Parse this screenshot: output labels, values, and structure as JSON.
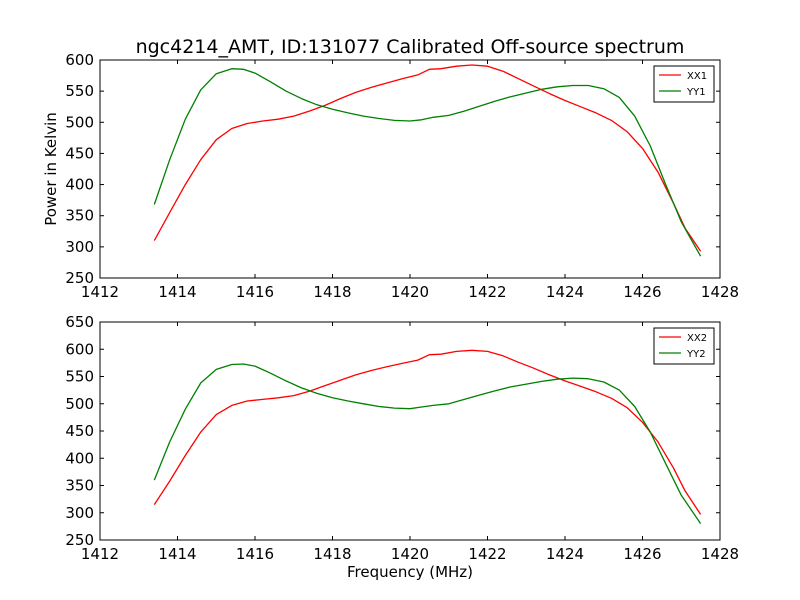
{
  "figure": {
    "title": "ngc4214_AMT, ID:131077 Calibrated Off-source spectrum"
  },
  "chart_data": [
    {
      "type": "line",
      "title": "ngc4214_AMT, ID:131077 Calibrated Off-source spectrum",
      "xlabel": "",
      "ylabel": "Power in Kelvin",
      "xlim": [
        1412,
        1428
      ],
      "ylim": [
        250,
        600
      ],
      "xticks": [
        1412,
        1414,
        1416,
        1418,
        1420,
        1422,
        1424,
        1426,
        1428
      ],
      "yticks": [
        250,
        300,
        350,
        400,
        450,
        500,
        550,
        600
      ],
      "grid": false,
      "legend_position": "top-right",
      "series": [
        {
          "name": "XX1",
          "color": "#ff0000",
          "x": [
            1413.4,
            1413.8,
            1414.2,
            1414.6,
            1415.0,
            1415.4,
            1415.8,
            1416.2,
            1416.6,
            1417.0,
            1417.4,
            1417.8,
            1418.2,
            1418.6,
            1419.0,
            1419.4,
            1419.8,
            1420.2,
            1420.5,
            1420.8,
            1421.2,
            1421.6,
            1422.0,
            1422.4,
            1422.8,
            1423.2,
            1423.6,
            1424.0,
            1424.4,
            1424.8,
            1425.2,
            1425.6,
            1426.0,
            1426.4,
            1426.8,
            1427.1,
            1427.5
          ],
          "y": [
            310,
            355,
            400,
            440,
            472,
            490,
            498,
            502,
            505,
            510,
            518,
            527,
            538,
            548,
            556,
            563,
            570,
            576,
            585,
            586,
            590,
            592,
            590,
            582,
            570,
            558,
            546,
            535,
            525,
            515,
            503,
            485,
            458,
            420,
            370,
            330,
            293
          ]
        },
        {
          "name": "YY1",
          "color": "#008000",
          "x": [
            1413.4,
            1413.8,
            1414.2,
            1414.6,
            1415.0,
            1415.4,
            1415.7,
            1416.0,
            1416.4,
            1416.8,
            1417.2,
            1417.6,
            1418.0,
            1418.4,
            1418.8,
            1419.2,
            1419.6,
            1420.0,
            1420.3,
            1420.6,
            1421.0,
            1421.4,
            1421.8,
            1422.2,
            1422.6,
            1423.0,
            1423.4,
            1423.8,
            1424.2,
            1424.6,
            1425.0,
            1425.4,
            1425.8,
            1426.2,
            1426.6,
            1427.0,
            1427.5
          ],
          "y": [
            368,
            440,
            505,
            552,
            578,
            586,
            585,
            579,
            565,
            550,
            538,
            528,
            521,
            515,
            510,
            506,
            503,
            502,
            504,
            508,
            511,
            518,
            526,
            534,
            541,
            547,
            553,
            557,
            559,
            559,
            554,
            540,
            510,
            462,
            400,
            340,
            285
          ]
        }
      ]
    },
    {
      "type": "line",
      "title": "",
      "xlabel": "Frequency (MHz)",
      "ylabel": "",
      "xlim": [
        1412,
        1428
      ],
      "ylim": [
        250,
        650
      ],
      "xticks": [
        1412,
        1414,
        1416,
        1418,
        1420,
        1422,
        1424,
        1426,
        1428
      ],
      "yticks": [
        250,
        300,
        350,
        400,
        450,
        500,
        550,
        600,
        650
      ],
      "grid": false,
      "legend_position": "top-right",
      "series": [
        {
          "name": "XX2",
          "color": "#ff0000",
          "x": [
            1413.4,
            1413.8,
            1414.2,
            1414.6,
            1415.0,
            1415.4,
            1415.8,
            1416.2,
            1416.6,
            1417.0,
            1417.4,
            1417.8,
            1418.2,
            1418.6,
            1419.0,
            1419.4,
            1419.8,
            1420.2,
            1420.5,
            1420.8,
            1421.2,
            1421.6,
            1422.0,
            1422.4,
            1422.8,
            1423.2,
            1423.6,
            1424.0,
            1424.4,
            1424.8,
            1425.2,
            1425.6,
            1426.0,
            1426.4,
            1426.8,
            1427.1,
            1427.5
          ],
          "y": [
            315,
            358,
            405,
            448,
            480,
            497,
            505,
            508,
            511,
            515,
            523,
            533,
            543,
            553,
            561,
            568,
            574,
            580,
            590,
            591,
            596,
            598,
            596,
            588,
            576,
            565,
            553,
            542,
            532,
            522,
            510,
            493,
            466,
            430,
            382,
            340,
            297
          ]
        },
        {
          "name": "YY2",
          "color": "#008000",
          "x": [
            1413.4,
            1413.8,
            1414.2,
            1414.6,
            1415.0,
            1415.4,
            1415.7,
            1416.0,
            1416.4,
            1416.8,
            1417.2,
            1417.6,
            1418.0,
            1418.4,
            1418.8,
            1419.2,
            1419.6,
            1420.0,
            1420.3,
            1420.6,
            1421.0,
            1421.4,
            1421.8,
            1422.2,
            1422.6,
            1423.0,
            1423.4,
            1423.8,
            1424.2,
            1424.6,
            1425.0,
            1425.4,
            1425.8,
            1426.2,
            1426.6,
            1427.0,
            1427.5
          ],
          "y": [
            360,
            430,
            490,
            538,
            563,
            572,
            573,
            569,
            556,
            542,
            529,
            519,
            511,
            505,
            500,
            495,
            492,
            491,
            494,
            497,
            500,
            508,
            516,
            524,
            531,
            536,
            541,
            545,
            547,
            546,
            540,
            525,
            495,
            448,
            390,
            332,
            280
          ]
        }
      ]
    }
  ]
}
